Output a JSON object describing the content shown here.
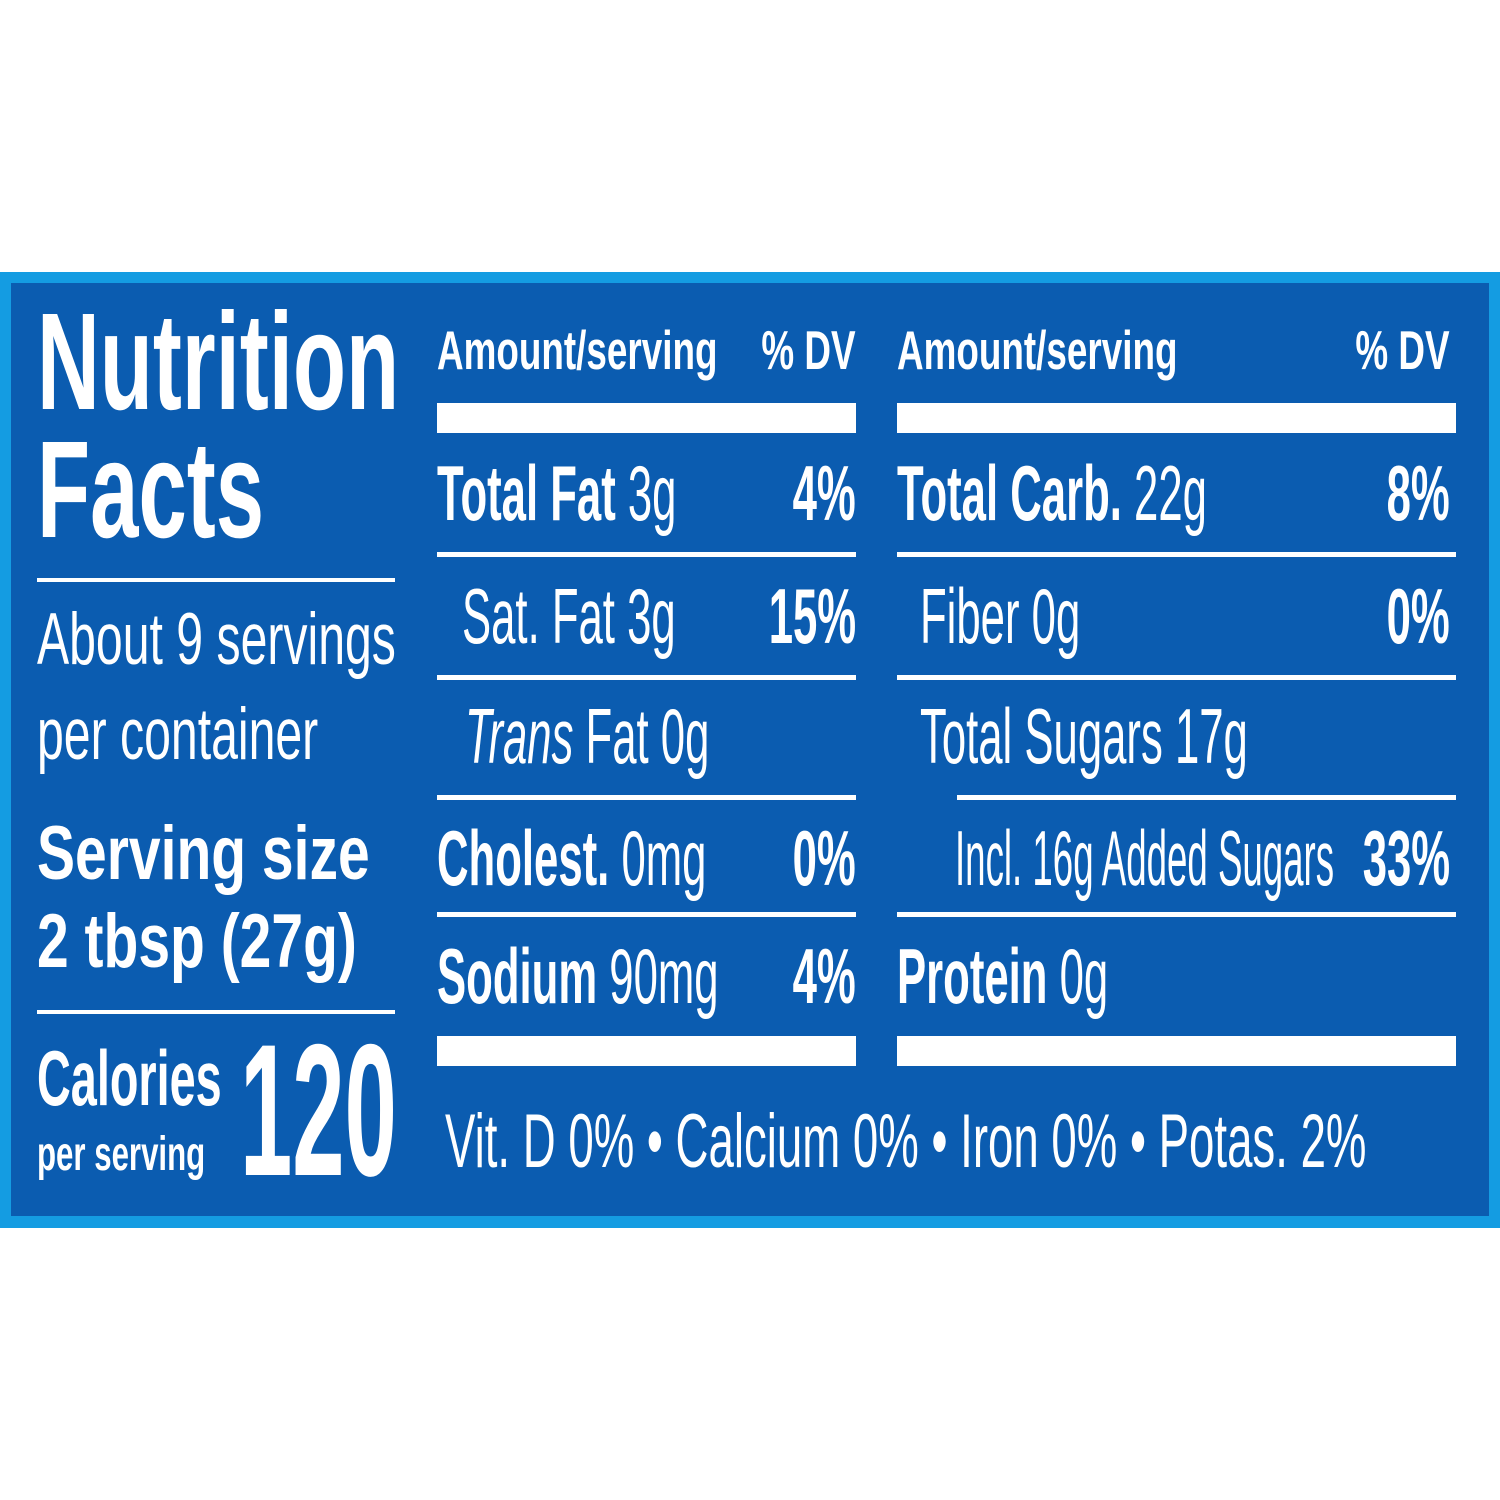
{
  "colors": {
    "border": "#149ce2",
    "panel": "#0b5cb0",
    "text": "#ffffff"
  },
  "title": {
    "line1": "Nutrition",
    "line2": "Facts"
  },
  "servings": {
    "line1": "About 9 servings",
    "line2": "per container"
  },
  "serving_size": {
    "label": "Serving size",
    "value": "2 tbsp (27g)"
  },
  "calories": {
    "label": "Calories",
    "sublabel": "per serving",
    "value": "120"
  },
  "headers": {
    "amount": "Amount/serving",
    "dv": "% DV"
  },
  "left_rows": [
    {
      "name": "Total Fat",
      "amount": "3g",
      "dv": "4%"
    },
    {
      "name": "Sat. Fat",
      "amount": "3g",
      "dv": "15%"
    },
    {
      "name_italic": "Trans",
      "name": "Fat",
      "amount": "0g"
    },
    {
      "name": "Cholest.",
      "amount": "0mg",
      "dv": "0%"
    },
    {
      "name": "Sodium",
      "amount": "90mg",
      "dv": "4%"
    }
  ],
  "right_rows": [
    {
      "name": "Total Carb.",
      "amount": "22g",
      "dv": "8%"
    },
    {
      "name": "Fiber",
      "amount": "0g",
      "dv": "0%"
    },
    {
      "name": "Total Sugars",
      "amount": "17g"
    },
    {
      "name": "Incl. 16g Added Sugars",
      "dv": "33%"
    },
    {
      "name": "Protein",
      "amount": "0g"
    }
  ],
  "footer": {
    "items": [
      "Vit. D 0%",
      "Calcium 0%",
      "Iron 0%",
      "Potas. 2%"
    ],
    "separator": "•"
  }
}
